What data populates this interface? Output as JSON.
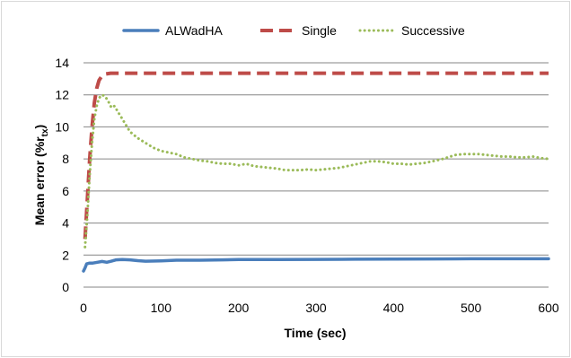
{
  "chart_data": {
    "type": "line",
    "title": "",
    "xlabel": "Time (sec)",
    "ylabel_main": "Mean error (%r",
    "ylabel_sub": "tx",
    "ylabel_close": ")",
    "xlim": [
      0,
      600
    ],
    "ylim": [
      0,
      14
    ],
    "x_ticks": [
      0,
      100,
      200,
      300,
      400,
      500,
      600
    ],
    "y_ticks": [
      0,
      2,
      4,
      6,
      8,
      10,
      12,
      14
    ],
    "grid": "horizontal",
    "legend_position": "top",
    "series": [
      {
        "name": "ALWadHA",
        "color": "#4a7ebb",
        "style": "solid",
        "points": [
          [
            0,
            1.0
          ],
          [
            2,
            1.2
          ],
          [
            4,
            1.45
          ],
          [
            8,
            1.5
          ],
          [
            12,
            1.5
          ],
          [
            18,
            1.55
          ],
          [
            24,
            1.6
          ],
          [
            30,
            1.55
          ],
          [
            36,
            1.62
          ],
          [
            42,
            1.7
          ],
          [
            50,
            1.72
          ],
          [
            60,
            1.7
          ],
          [
            70,
            1.65
          ],
          [
            80,
            1.62
          ],
          [
            100,
            1.64
          ],
          [
            120,
            1.68
          ],
          [
            150,
            1.68
          ],
          [
            180,
            1.7
          ],
          [
            200,
            1.72
          ],
          [
            250,
            1.72
          ],
          [
            300,
            1.73
          ],
          [
            350,
            1.74
          ],
          [
            400,
            1.75
          ],
          [
            450,
            1.76
          ],
          [
            500,
            1.77
          ],
          [
            550,
            1.77
          ],
          [
            600,
            1.77
          ]
        ]
      },
      {
        "name": "Single",
        "color": "#be4b48",
        "style": "dashed",
        "points": [
          [
            2,
            3.0
          ],
          [
            5,
            5.5
          ],
          [
            8,
            8.0
          ],
          [
            11,
            10.0
          ],
          [
            14,
            11.5
          ],
          [
            17,
            12.4
          ],
          [
            20,
            12.9
          ],
          [
            24,
            13.2
          ],
          [
            28,
            13.3
          ],
          [
            35,
            13.35
          ],
          [
            40,
            13.35
          ],
          [
            100,
            13.35
          ],
          [
            200,
            13.35
          ],
          [
            300,
            13.35
          ],
          [
            400,
            13.35
          ],
          [
            500,
            13.35
          ],
          [
            600,
            13.35
          ]
        ]
      },
      {
        "name": "Successive",
        "color": "#9bbb59",
        "style": "dotted",
        "points": [
          [
            2,
            2.5
          ],
          [
            5,
            4.5
          ],
          [
            8,
            7.0
          ],
          [
            11,
            9.0
          ],
          [
            14,
            10.5
          ],
          [
            17,
            11.3
          ],
          [
            20,
            11.8
          ],
          [
            24,
            12.0
          ],
          [
            28,
            11.9
          ],
          [
            32,
            11.6
          ],
          [
            36,
            11.2
          ],
          [
            40,
            11.3
          ],
          [
            45,
            10.9
          ],
          [
            50,
            10.5
          ],
          [
            55,
            10.1
          ],
          [
            60,
            9.7
          ],
          [
            70,
            9.3
          ],
          [
            80,
            9.0
          ],
          [
            90,
            8.7
          ],
          [
            100,
            8.5
          ],
          [
            110,
            8.4
          ],
          [
            120,
            8.3
          ],
          [
            130,
            8.1
          ],
          [
            140,
            8.0
          ],
          [
            150,
            7.9
          ],
          [
            160,
            7.85
          ],
          [
            170,
            7.75
          ],
          [
            180,
            7.7
          ],
          [
            190,
            7.7
          ],
          [
            200,
            7.6
          ],
          [
            210,
            7.7
          ],
          [
            220,
            7.55
          ],
          [
            230,
            7.5
          ],
          [
            240,
            7.45
          ],
          [
            250,
            7.4
          ],
          [
            260,
            7.3
          ],
          [
            270,
            7.3
          ],
          [
            280,
            7.3
          ],
          [
            290,
            7.35
          ],
          [
            300,
            7.3
          ],
          [
            310,
            7.35
          ],
          [
            320,
            7.4
          ],
          [
            330,
            7.45
          ],
          [
            340,
            7.55
          ],
          [
            350,
            7.65
          ],
          [
            360,
            7.75
          ],
          [
            370,
            7.85
          ],
          [
            380,
            7.85
          ],
          [
            390,
            7.8
          ],
          [
            400,
            7.7
          ],
          [
            410,
            7.7
          ],
          [
            420,
            7.65
          ],
          [
            430,
            7.7
          ],
          [
            440,
            7.75
          ],
          [
            450,
            7.85
          ],
          [
            460,
            7.95
          ],
          [
            470,
            8.1
          ],
          [
            480,
            8.25
          ],
          [
            490,
            8.3
          ],
          [
            500,
            8.3
          ],
          [
            510,
            8.3
          ],
          [
            520,
            8.25
          ],
          [
            530,
            8.2
          ],
          [
            540,
            8.15
          ],
          [
            550,
            8.15
          ],
          [
            560,
            8.1
          ],
          [
            570,
            8.1
          ],
          [
            580,
            8.15
          ],
          [
            590,
            8.05
          ],
          [
            600,
            8.0
          ]
        ]
      }
    ]
  }
}
